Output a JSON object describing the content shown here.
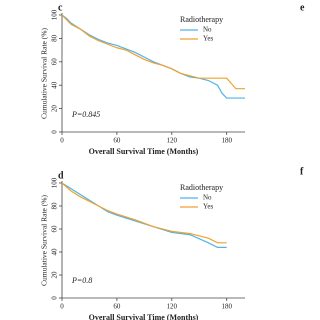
{
  "chart_data": [
    {
      "type": "line",
      "panel_label": "c",
      "xlabel": "Overall Survival Time (Months)",
      "ylabel": "Cumulative Survival Rate (%)",
      "legend_title": "Radiotherapy",
      "annotation": "P=0.845",
      "x": [
        0,
        5,
        10,
        20,
        30,
        40,
        50,
        60,
        70,
        80,
        90,
        100,
        110,
        120,
        130,
        140,
        150,
        160,
        170,
        175,
        180,
        190,
        200
      ],
      "series": [
        {
          "name": "No",
          "color": "#4fb3e6",
          "values": [
            100,
            97,
            93,
            88,
            83,
            79,
            76,
            74,
            71,
            68,
            64,
            60,
            57,
            54,
            50,
            47,
            46,
            44,
            40,
            33,
            29,
            29,
            29
          ]
        },
        {
          "name": "Yes",
          "color": "#f0a030",
          "values": [
            100,
            96,
            92,
            88,
            82,
            78,
            75,
            72,
            70,
            66,
            62,
            59,
            57,
            54,
            50,
            48,
            46,
            46,
            46,
            46,
            46,
            37,
            37
          ]
        }
      ],
      "xlim": [
        0,
        200
      ],
      "ylim": [
        0,
        100
      ],
      "xticks": [
        0,
        60,
        120,
        180
      ],
      "yticks": [
        0,
        20,
        40,
        60,
        80,
        100
      ]
    },
    {
      "type": "line",
      "panel_label": "d",
      "xlabel": "Overall Survival Time (Months)",
      "ylabel": "Cumulative Survival Rate (%)",
      "legend_title": "Radiotherapy",
      "annotation": "P=0.8",
      "x": [
        0,
        10,
        20,
        30,
        40,
        50,
        60,
        80,
        100,
        120,
        140,
        160,
        170,
        180
      ],
      "series": [
        {
          "name": "No",
          "color": "#4fb3e6",
          "values": [
            100,
            95,
            90,
            85,
            80,
            75,
            72,
            67,
            62,
            57,
            55,
            48,
            44,
            44
          ]
        },
        {
          "name": "Yes",
          "color": "#f0a030",
          "values": [
            100,
            93,
            88,
            84,
            80,
            76,
            73,
            68,
            62,
            58,
            56,
            52,
            48,
            48
          ]
        }
      ],
      "xlim": [
        0,
        200
      ],
      "ylim": [
        0,
        100
      ],
      "xticks": [
        0,
        60,
        120,
        180
      ],
      "yticks": [
        0,
        20,
        40,
        60,
        80,
        100
      ]
    }
  ],
  "other_panel_labels": [
    "e",
    "f"
  ]
}
